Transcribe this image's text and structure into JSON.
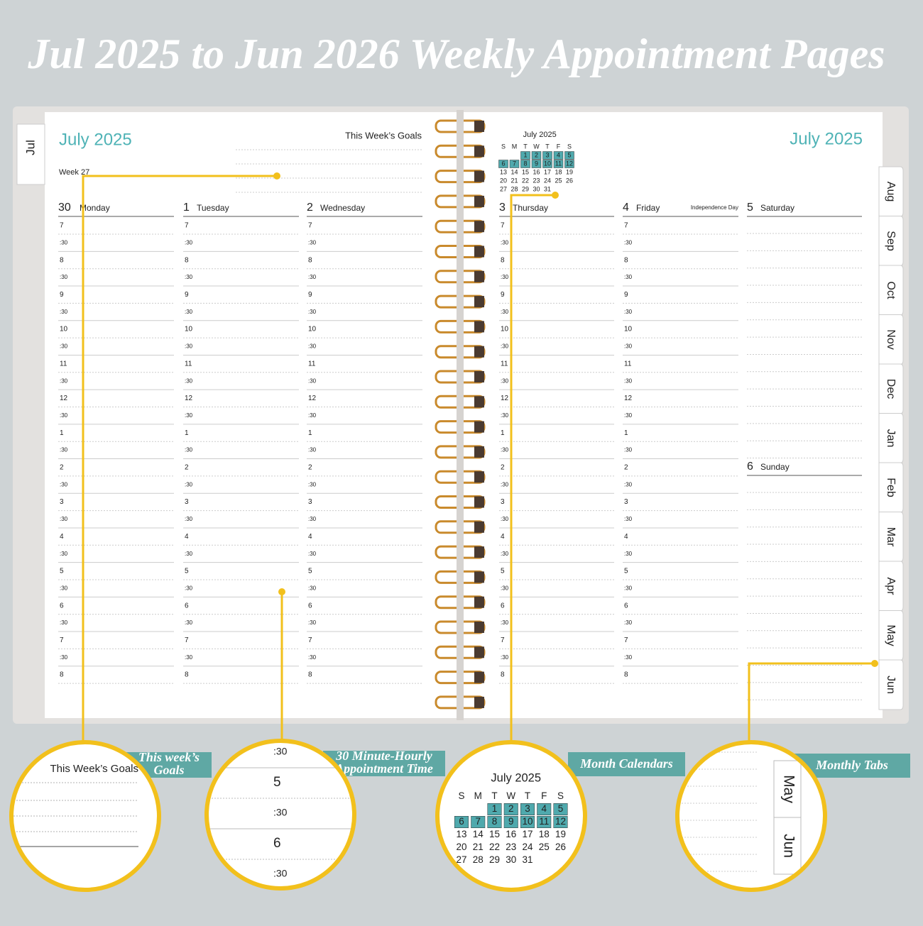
{
  "header": {
    "title": "Jul 2025 to Jun 2026 Weekly Appointment Pages"
  },
  "times": [
    "7",
    ":30",
    "8",
    ":30",
    "9",
    ":30",
    "10",
    ":30",
    "11",
    ":30",
    "12",
    ":30",
    "1",
    ":30",
    "2",
    ":30",
    "3",
    ":30",
    "4",
    ":30",
    "5",
    ":30",
    "6",
    ":30",
    "7",
    ":30",
    "8"
  ],
  "left_page": {
    "tab": "Jul",
    "month": "July 2025",
    "week": "Week 27",
    "goals_title": "This Week’s Goals",
    "days": [
      {
        "number": "30",
        "name": "Monday"
      },
      {
        "number": "1",
        "name": "Tuesday"
      },
      {
        "number": "2",
        "name": "Wednesday"
      }
    ]
  },
  "right_page": {
    "month": "July 2025",
    "mini_calendar": {
      "title": "July 2025",
      "weekdays": [
        "S",
        "M",
        "T",
        "W",
        "T",
        "F",
        "S"
      ],
      "weeks": [
        [
          null,
          null,
          "1",
          "2",
          "3",
          "4",
          "5"
        ],
        [
          "6",
          "7",
          "8",
          "9",
          "10",
          "11",
          "12"
        ],
        [
          "13",
          "14",
          "15",
          "16",
          "17",
          "18",
          "19"
        ],
        [
          "20",
          "21",
          "22",
          "23",
          "24",
          "25",
          "26"
        ],
        [
          "27",
          "28",
          "29",
          "30",
          "31",
          null,
          null
        ]
      ],
      "highlighted_weeks": [
        0,
        1
      ]
    },
    "days": [
      {
        "number": "3",
        "name": "Thursday"
      },
      {
        "number": "4",
        "name": "Friday",
        "note": "Independence Day"
      },
      {
        "number": "5",
        "name": "Saturday"
      },
      {
        "number": "6",
        "name": "Sunday"
      }
    ],
    "tabs": [
      "Aug",
      "Sep",
      "Oct",
      "Nov",
      "Dec",
      "Jan",
      "Feb",
      "Mar",
      "Apr",
      "May",
      "Jun"
    ]
  },
  "callouts": [
    {
      "label": [
        "This week’s",
        "Goals"
      ]
    },
    {
      "label": [
        "30 Minute-Hourly",
        "Appointment Time"
      ]
    },
    {
      "label": [
        "Month Calendars"
      ]
    },
    {
      "label": [
        "Monthly Tabs"
      ]
    }
  ]
}
